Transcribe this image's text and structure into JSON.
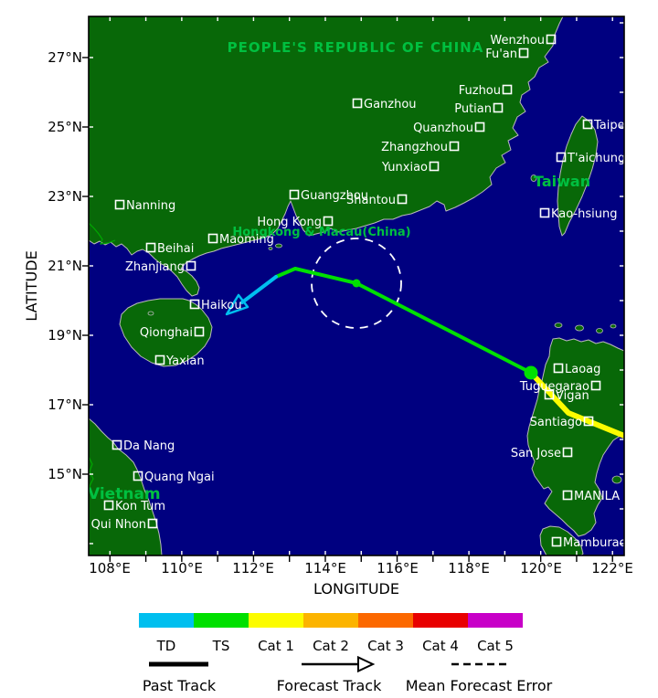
{
  "map": {
    "region_labels": {
      "china": "PEOPLE'S REPUBLIC OF CHINA",
      "hongkong_macau": "Hongkong & Macau(China)",
      "taiwan": "Taiwan",
      "vietnam": "Vietnam"
    },
    "cities": {
      "wenzhou": "Wenzhou",
      "fu_an": "Fu'an",
      "fuzhou": "Fuzhou",
      "putian": "Putian",
      "quanzhou": "Quanzhou",
      "zhangzhou": "Zhangzhou",
      "yunxiao": "Yunxiao",
      "ganzhou": "Ganzhou",
      "guangzhou": "Guangzhou",
      "shantou": "Shantou",
      "hong_kong": "Hong Kong",
      "nanning": "Nanning",
      "beihai": "Beihai",
      "zhanjiang": "Zhanjiang",
      "maoming": "Maoming",
      "haikou": "Haikou",
      "qionghai": "Qionghai",
      "yaxian": "Yaxian",
      "taipei": "Taipei",
      "taichung": "T'aichung",
      "kaohsiung": "Kao-hsiung",
      "laoag": "Laoag",
      "tuguegarao": "Tuguegarao",
      "vigan": "Vigan",
      "santiago": "Santiago",
      "san_jose": "San Jose",
      "manila": "MANILA",
      "mamburao": "Mamburao",
      "da_nang": "Da Nang",
      "quang_ngai": "Quang Ngai",
      "kon_tum": "Kon Tum",
      "qui_nhon": "Qui Nhon"
    },
    "colors": {
      "sea": "#000080",
      "land": "#086808",
      "coastline": "#b9b9b9",
      "region_label": "#00c040",
      "city_label": "#ffffff"
    }
  },
  "axes": {
    "x_title": "LONGITUDE",
    "y_title": "LATITUDE",
    "x_ticks": [
      "108°E",
      "110°E",
      "112°E",
      "114°E",
      "116°E",
      "118°E",
      "120°E",
      "122°E"
    ],
    "y_ticks": [
      "27°N",
      "25°N",
      "23°N",
      "21°N",
      "19°N",
      "17°N",
      "15°N"
    ]
  },
  "track": {
    "past_color": "#fcfc00",
    "forecast_ts_color": "#00e000",
    "forecast_td_color": "#00bfef",
    "position_color": "#00e000",
    "error_circle_color": "#ffffff"
  },
  "legend": {
    "categories": [
      {
        "label": "TD",
        "color": "#00bfef"
      },
      {
        "label": "TS",
        "color": "#00e000"
      },
      {
        "label": "Cat 1",
        "color": "#fcfc00"
      },
      {
        "label": "Cat 2",
        "color": "#fcb400"
      },
      {
        "label": "Cat 3",
        "color": "#fc6800"
      },
      {
        "label": "Cat 4",
        "color": "#e80000"
      },
      {
        "label": "Cat 5",
        "color": "#c800c8"
      }
    ],
    "past_track_label": "Past Track",
    "forecast_track_label": "Forecast Track",
    "mean_forecast_error_label": "Mean Forecast Error"
  }
}
